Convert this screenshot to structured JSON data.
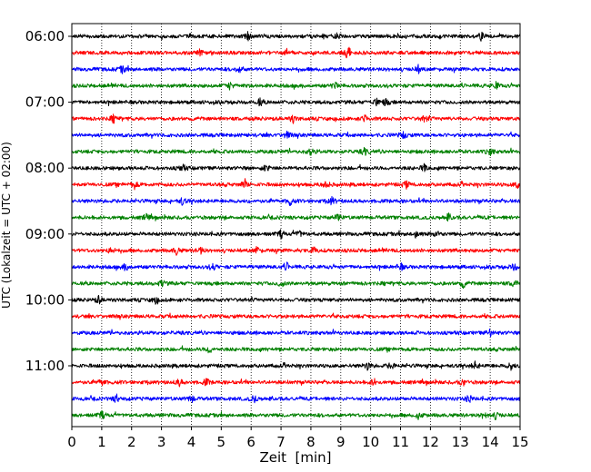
{
  "chart_data": {
    "type": "line",
    "title": "",
    "xlabel": "Zeit  [min]",
    "ylabel": "UTC (Lokalzeit = UTC + 02:00)",
    "xlim": [
      0,
      15
    ],
    "x_ticks": [
      "0",
      "1",
      "2",
      "3",
      "4",
      "5",
      "6",
      "7",
      "8",
      "9",
      "10",
      "11",
      "12",
      "13",
      "14",
      "15"
    ],
    "y_tick_labels": [
      "06:00",
      "07:00",
      "08:00",
      "09:00",
      "10:00",
      "11:00"
    ],
    "y_ticks_utc": [
      "06:00",
      "07:00",
      "08:00",
      "09:00",
      "10:00",
      "11:00"
    ],
    "grid": "vertical dotted lines at each minute",
    "legend": "none",
    "color_cycle": [
      "#000000",
      "#ff0000",
      "#0000ff",
      "#008000"
    ],
    "trace_interval_min": 15,
    "series": [
      {
        "start": "06:00",
        "color": "#000000",
        "events_min": [
          5.9,
          8.9,
          13.7
        ]
      },
      {
        "start": "06:15",
        "color": "#ff0000",
        "events_min": [
          4.3,
          7.2,
          9.2,
          9.3
        ]
      },
      {
        "start": "06:30",
        "color": "#0000ff",
        "events_min": [
          1.7,
          5.6,
          11.6
        ]
      },
      {
        "start": "06:45",
        "color": "#008000",
        "events_min": [
          5.3,
          8.8,
          14.2
        ]
      },
      {
        "start": "07:00",
        "color": "#000000",
        "events_min": [
          6.3,
          10.2,
          10.5
        ]
      },
      {
        "start": "07:15",
        "color": "#ff0000",
        "events_min": [
          1.4,
          7.4,
          9.8,
          11.8
        ]
      },
      {
        "start": "07:30",
        "color": "#0000ff",
        "events_min": [
          7.2,
          11.1
        ]
      },
      {
        "start": "07:45",
        "color": "#008000",
        "events_min": [
          8.0,
          9.8,
          14.0
        ]
      },
      {
        "start": "08:00",
        "color": "#000000",
        "events_min": [
          3.7,
          6.5,
          11.8
        ]
      },
      {
        "start": "08:15",
        "color": "#ff0000",
        "events_min": [
          2.1,
          5.8,
          8.5,
          11.2,
          14.9
        ]
      },
      {
        "start": "08:30",
        "color": "#0000ff",
        "events_min": [
          3.7,
          7.3,
          8.7
        ]
      },
      {
        "start": "08:45",
        "color": "#008000",
        "events_min": [
          2.5,
          8.9,
          12.6
        ]
      },
      {
        "start": "09:00",
        "color": "#000000",
        "events_min": [
          7.0,
          7.6,
          11.5,
          12.2
        ]
      },
      {
        "start": "09:15",
        "color": "#ff0000",
        "events_min": [
          1.3,
          3.5,
          4.3,
          6.2,
          8.1
        ]
      },
      {
        "start": "09:30",
        "color": "#0000ff",
        "events_min": [
          1.8,
          4.7,
          7.2,
          11.0,
          14.8
        ]
      },
      {
        "start": "09:45",
        "color": "#008000",
        "events_min": [
          3.0,
          7.0,
          13.1,
          14.8
        ]
      },
      {
        "start": "10:00",
        "color": "#000000",
        "events_min": [
          0.9,
          2.8
        ]
      },
      {
        "start": "10:15",
        "color": "#ff0000",
        "events_min": []
      },
      {
        "start": "10:30",
        "color": "#0000ff",
        "events_min": [
          14.0
        ]
      },
      {
        "start": "10:45",
        "color": "#008000",
        "events_min": [
          4.6
        ]
      },
      {
        "start": "11:00",
        "color": "#000000",
        "events_min": [
          9.9,
          10.7,
          13.5,
          14.7
        ]
      },
      {
        "start": "11:15",
        "color": "#ff0000",
        "events_min": [
          1.0,
          3.6,
          4.5,
          10.1,
          13.1
        ]
      },
      {
        "start": "11:30",
        "color": "#0000ff",
        "events_min": [
          1.5,
          4.0,
          6.1,
          13.3
        ]
      },
      {
        "start": "11:45",
        "color": "#008000",
        "events_min": [
          1.0,
          11.6,
          13.8,
          14.2
        ]
      }
    ]
  }
}
